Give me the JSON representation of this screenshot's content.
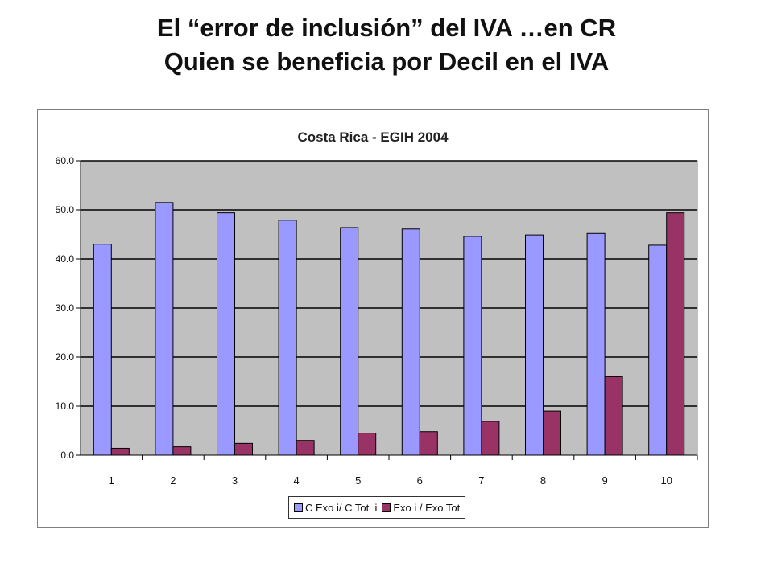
{
  "slide": {
    "title_line1": "El “error de inclusión” del IVA …en CR",
    "title_line2": "Quien se beneficia por Decil en el IVA"
  },
  "colors": {
    "series1": "#9999ff",
    "series2": "#993366",
    "plot_bg": "#c0c0c0",
    "grid": "#000000"
  },
  "chart_data": {
    "type": "bar",
    "title": "Costa Rica - EGIH 2004",
    "categories": [
      "1",
      "2",
      "3",
      "4",
      "5",
      "6",
      "7",
      "8",
      "9",
      "10"
    ],
    "series": [
      {
        "name": "C Exo i/ C Tot  i",
        "values": [
          43.0,
          51.5,
          49.4,
          47.9,
          46.4,
          46.1,
          44.6,
          44.9,
          45.2,
          42.8
        ]
      },
      {
        "name": "Exo i / Exo Tot",
        "values": [
          1.4,
          1.7,
          2.4,
          3.0,
          4.5,
          4.8,
          6.9,
          9.0,
          16.0,
          49.4
        ]
      }
    ],
    "ylim": [
      0,
      60
    ],
    "yticks": [
      "0.0",
      "10.0",
      "20.0",
      "30.0",
      "40.0",
      "50.0",
      "60.0"
    ],
    "xlabel": "",
    "ylabel": "",
    "grid": true,
    "legend_position": "bottom"
  }
}
